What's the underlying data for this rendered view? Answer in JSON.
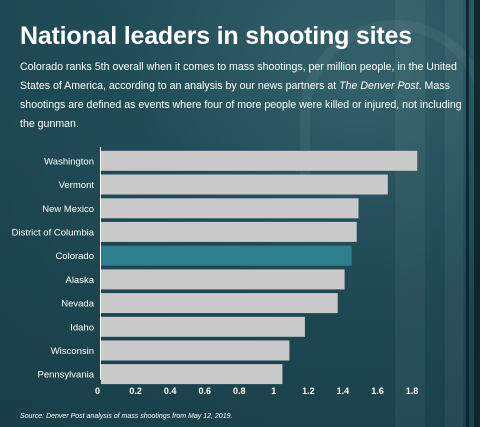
{
  "title": "National leaders in shooting sites",
  "description": {
    "before": "Colorado ranks 5th overall when it comes to mass shootings, per million people, in the United States of America, according to an analysis by our news partners at ",
    "publication": "The Denver Post",
    "after": ". Mass shootings are defined as events where four of more people were killed or injured, not including the gunman."
  },
  "source": "Source: Denver Post analysis of mass shootings from May 12, 2019.",
  "colors": {
    "bar": "#cacaca",
    "highlight": "#2e7f8d",
    "axis": "#ffffff"
  },
  "chart_data": {
    "type": "bar",
    "orientation": "horizontal",
    "categories": [
      "Washington",
      "Vermont",
      "New Mexico",
      "District of Columbia",
      "Colorado",
      "Alaska",
      "Nevada",
      "Idaho",
      "Wisconsin",
      "Pennsylvania"
    ],
    "values": [
      1.83,
      1.66,
      1.49,
      1.48,
      1.45,
      1.41,
      1.37,
      1.18,
      1.09,
      1.05
    ],
    "highlight": "Colorado",
    "xlim": [
      0,
      1.9
    ],
    "xticks": [
      "0",
      "0.2",
      "0.4",
      "0.6",
      "0.8",
      "1",
      "1.2",
      "1.4",
      "1.6",
      "1.8"
    ],
    "title": "National leaders in shooting sites",
    "grid": false,
    "legend": "none"
  }
}
